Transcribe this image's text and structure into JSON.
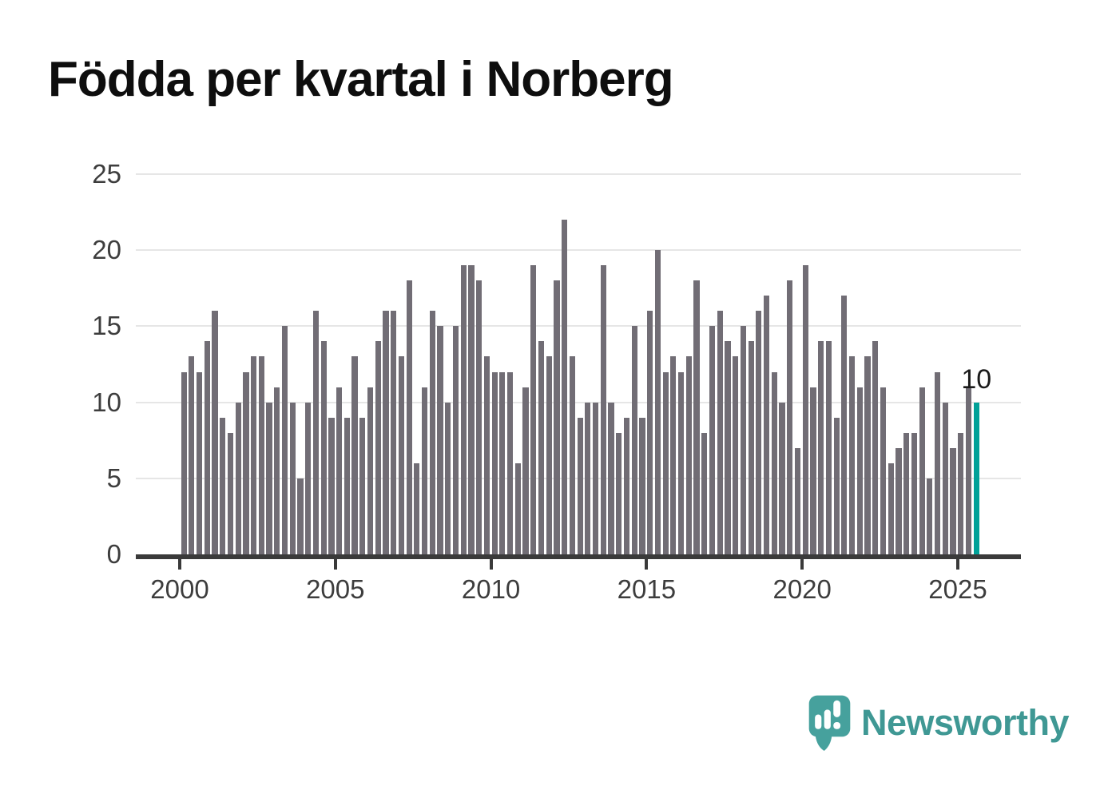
{
  "chart_data": {
    "type": "bar",
    "title": "Födda per kvartal i Norberg",
    "x_period": "quarterly",
    "x_range": "2000 Q1 – 2025 Q3",
    "xlabel": "",
    "ylabel": "",
    "ylim": [
      0,
      25
    ],
    "y_ticks": [
      0,
      5,
      10,
      15,
      20,
      25
    ],
    "x_tick_labels": [
      "2000",
      "2005",
      "2010",
      "2015",
      "2020",
      "2025"
    ],
    "grid": "horizontal",
    "legend": "none",
    "highlight": {
      "position": "last-bar",
      "value": 10,
      "label": "10"
    },
    "series_by_year": [
      {
        "year": "2000",
        "values": [
          12,
          13,
          12,
          14
        ]
      },
      {
        "year": "2001",
        "values": [
          16,
          9,
          8,
          10
        ]
      },
      {
        "year": "2002",
        "values": [
          12,
          13,
          13,
          10
        ]
      },
      {
        "year": "2003",
        "values": [
          11,
          15,
          10,
          5
        ]
      },
      {
        "year": "2004",
        "values": [
          10,
          16,
          14,
          9
        ]
      },
      {
        "year": "2005",
        "values": [
          11,
          9,
          13,
          9
        ]
      },
      {
        "year": "2006",
        "values": [
          11,
          14,
          16,
          16
        ]
      },
      {
        "year": "2007",
        "values": [
          13,
          18,
          6,
          11
        ]
      },
      {
        "year": "2008",
        "values": [
          16,
          15,
          10,
          15
        ]
      },
      {
        "year": "2009",
        "values": [
          19,
          19,
          18,
          13
        ]
      },
      {
        "year": "2010",
        "values": [
          12,
          12,
          12,
          6
        ]
      },
      {
        "year": "2011",
        "values": [
          11,
          19,
          14,
          13
        ]
      },
      {
        "year": "2012",
        "values": [
          18,
          22,
          13,
          9
        ]
      },
      {
        "year": "2013",
        "values": [
          10,
          10,
          19,
          10
        ]
      },
      {
        "year": "2014",
        "values": [
          8,
          9,
          15,
          9
        ]
      },
      {
        "year": "2015",
        "values": [
          16,
          20,
          12,
          13
        ]
      },
      {
        "year": "2016",
        "values": [
          12,
          13,
          18,
          8
        ]
      },
      {
        "year": "2017",
        "values": [
          15,
          16,
          14,
          13
        ]
      },
      {
        "year": "2018",
        "values": [
          15,
          14,
          16,
          17
        ]
      },
      {
        "year": "2019",
        "values": [
          12,
          10,
          18,
          7
        ]
      },
      {
        "year": "2020",
        "values": [
          19,
          11,
          14,
          14
        ]
      },
      {
        "year": "2021",
        "values": [
          9,
          17,
          13,
          11
        ]
      },
      {
        "year": "2022",
        "values": [
          13,
          14,
          11,
          6
        ]
      },
      {
        "year": "2023",
        "values": [
          7,
          8,
          8,
          11
        ]
      },
      {
        "year": "2024",
        "values": [
          5,
          12,
          10,
          7
        ]
      },
      {
        "year": "2025",
        "values": [
          8,
          11,
          10
        ]
      }
    ]
  },
  "branding": {
    "name": "Newsworthy",
    "icon": "speech-bubble-bar-chart-icon"
  },
  "colors": {
    "bar": "#716D75",
    "bar_highlight": "#00A198",
    "axis": "#3A3A3A",
    "gridline": "#E6E6E6",
    "tick_text": "#3D3D3D",
    "title_text": "#0E0E0E",
    "annotation_text": "#1A1A1A",
    "brand": "#3F9894",
    "brand_bubble": "#46A19D",
    "background": "#FFFFFF"
  }
}
